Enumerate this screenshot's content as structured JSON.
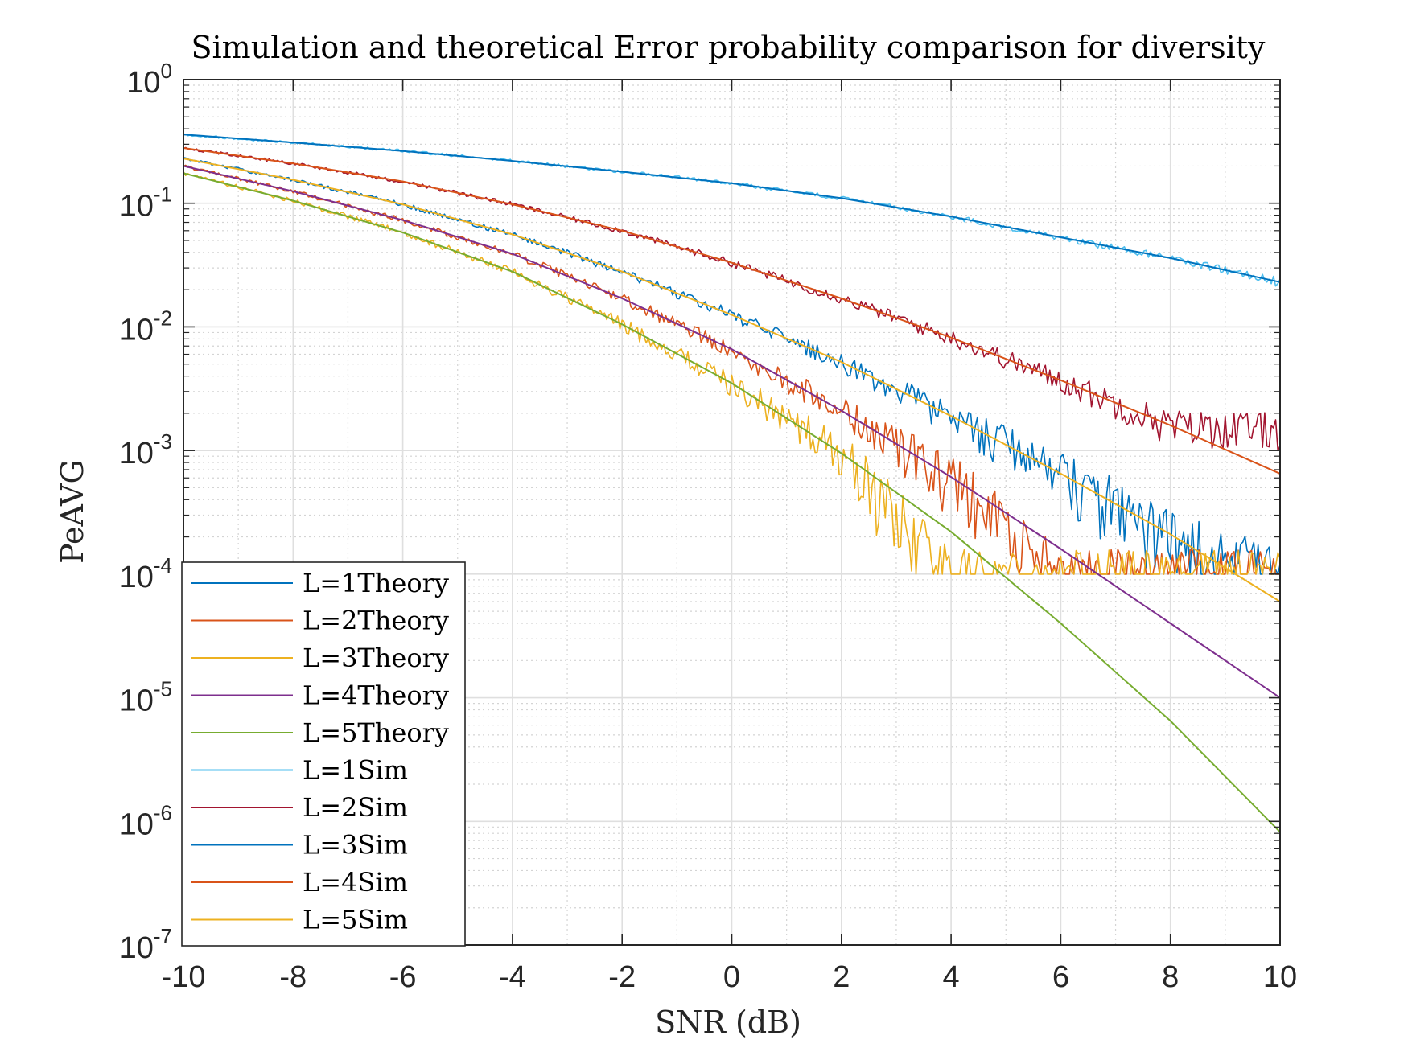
{
  "chart_data": {
    "type": "line",
    "title": "Simulation and theoretical Error probability comparison for diversity",
    "xlabel": "SNR (dB)",
    "ylabel": "PeAVG",
    "xlim": [
      -10,
      10
    ],
    "ylim": [
      1e-07,
      1
    ],
    "yscale": "log",
    "grid": true,
    "minor_grid": true,
    "legend_position": "bottom-left",
    "xticks": [
      -10,
      -8,
      -6,
      -4,
      -2,
      0,
      2,
      4,
      6,
      8,
      10
    ],
    "yticks": [
      {
        "base": "10",
        "exp": "-7",
        "value": 1e-07
      },
      {
        "base": "10",
        "exp": "-6",
        "value": 1e-06
      },
      {
        "base": "10",
        "exp": "-5",
        "value": 1e-05
      },
      {
        "base": "10",
        "exp": "-4",
        "value": 0.0001
      },
      {
        "base": "10",
        "exp": "-3",
        "value": 0.001
      },
      {
        "base": "10",
        "exp": "-2",
        "value": 0.01
      },
      {
        "base": "10",
        "exp": "-1",
        "value": 0.1
      },
      {
        "base": "10",
        "exp": "0",
        "value": 1
      }
    ],
    "x": [
      -10,
      -8,
      -6,
      -4,
      -2,
      0,
      2,
      4,
      6,
      8,
      10
    ],
    "series": [
      {
        "name": "L=1Theory",
        "color": "#0072BD",
        "kind": "theory",
        "values": [
          0.36,
          0.31,
          0.265,
          0.22,
          0.18,
          0.145,
          0.11,
          0.078,
          0.053,
          0.036,
          0.023
        ]
      },
      {
        "name": "L=2Theory",
        "color": "#D95319",
        "kind": "theory",
        "values": [
          0.28,
          0.21,
          0.15,
          0.098,
          0.06,
          0.033,
          0.017,
          0.0082,
          0.0037,
          0.0016,
          0.00065
        ]
      },
      {
        "name": "L=3Theory",
        "color": "#EDB120",
        "kind": "theory",
        "values": [
          0.23,
          0.155,
          0.098,
          0.056,
          0.028,
          0.0125,
          0.0052,
          0.0019,
          0.00065,
          0.00021,
          6e-05
        ]
      },
      {
        "name": "L=4Theory",
        "color": "#7E2F8E",
        "kind": "theory",
        "values": [
          0.2,
          0.125,
          0.073,
          0.039,
          0.017,
          0.0066,
          0.0021,
          0.00061,
          0.00016,
          4e-05,
          1e-05
        ]
      },
      {
        "name": "L=5Theory",
        "color": "#77AC30",
        "kind": "theory",
        "values": [
          0.175,
          0.105,
          0.058,
          0.028,
          0.0105,
          0.0035,
          0.00095,
          0.00022,
          4e-05,
          6.5e-06,
          8.2e-07
        ]
      },
      {
        "name": "L=1Sim",
        "color": "#4DBEEE",
        "kind": "sim",
        "values": [
          0.36,
          0.31,
          0.265,
          0.22,
          0.18,
          0.145,
          0.11,
          0.078,
          0.053,
          0.036,
          0.023
        ]
      },
      {
        "name": "L=2Sim",
        "color": "#A2142F",
        "kind": "sim",
        "values": [
          0.28,
          0.21,
          0.15,
          0.098,
          0.06,
          0.033,
          0.017,
          0.0082,
          0.0037,
          0.0016,
          0.0015
        ]
      },
      {
        "name": "L=3Sim",
        "color": "#0072BD",
        "kind": "sim",
        "values": [
          0.23,
          0.155,
          0.098,
          0.056,
          0.028,
          0.0125,
          0.0052,
          0.0019,
          0.00065,
          0.00021,
          0.0001
        ]
      },
      {
        "name": "L=4Sim",
        "color": "#D95319",
        "kind": "sim",
        "values": [
          0.2,
          0.125,
          0.073,
          0.039,
          0.017,
          0.0066,
          0.0021,
          0.00061,
          0.0001,
          0.0001,
          0.0001
        ]
      },
      {
        "name": "L=5Sim",
        "color": "#EDB120",
        "kind": "sim",
        "values": [
          0.175,
          0.105,
          0.058,
          0.028,
          0.0105,
          0.0035,
          0.00095,
          0.0001,
          0.0001,
          0.0001,
          0.0001
        ]
      }
    ]
  }
}
